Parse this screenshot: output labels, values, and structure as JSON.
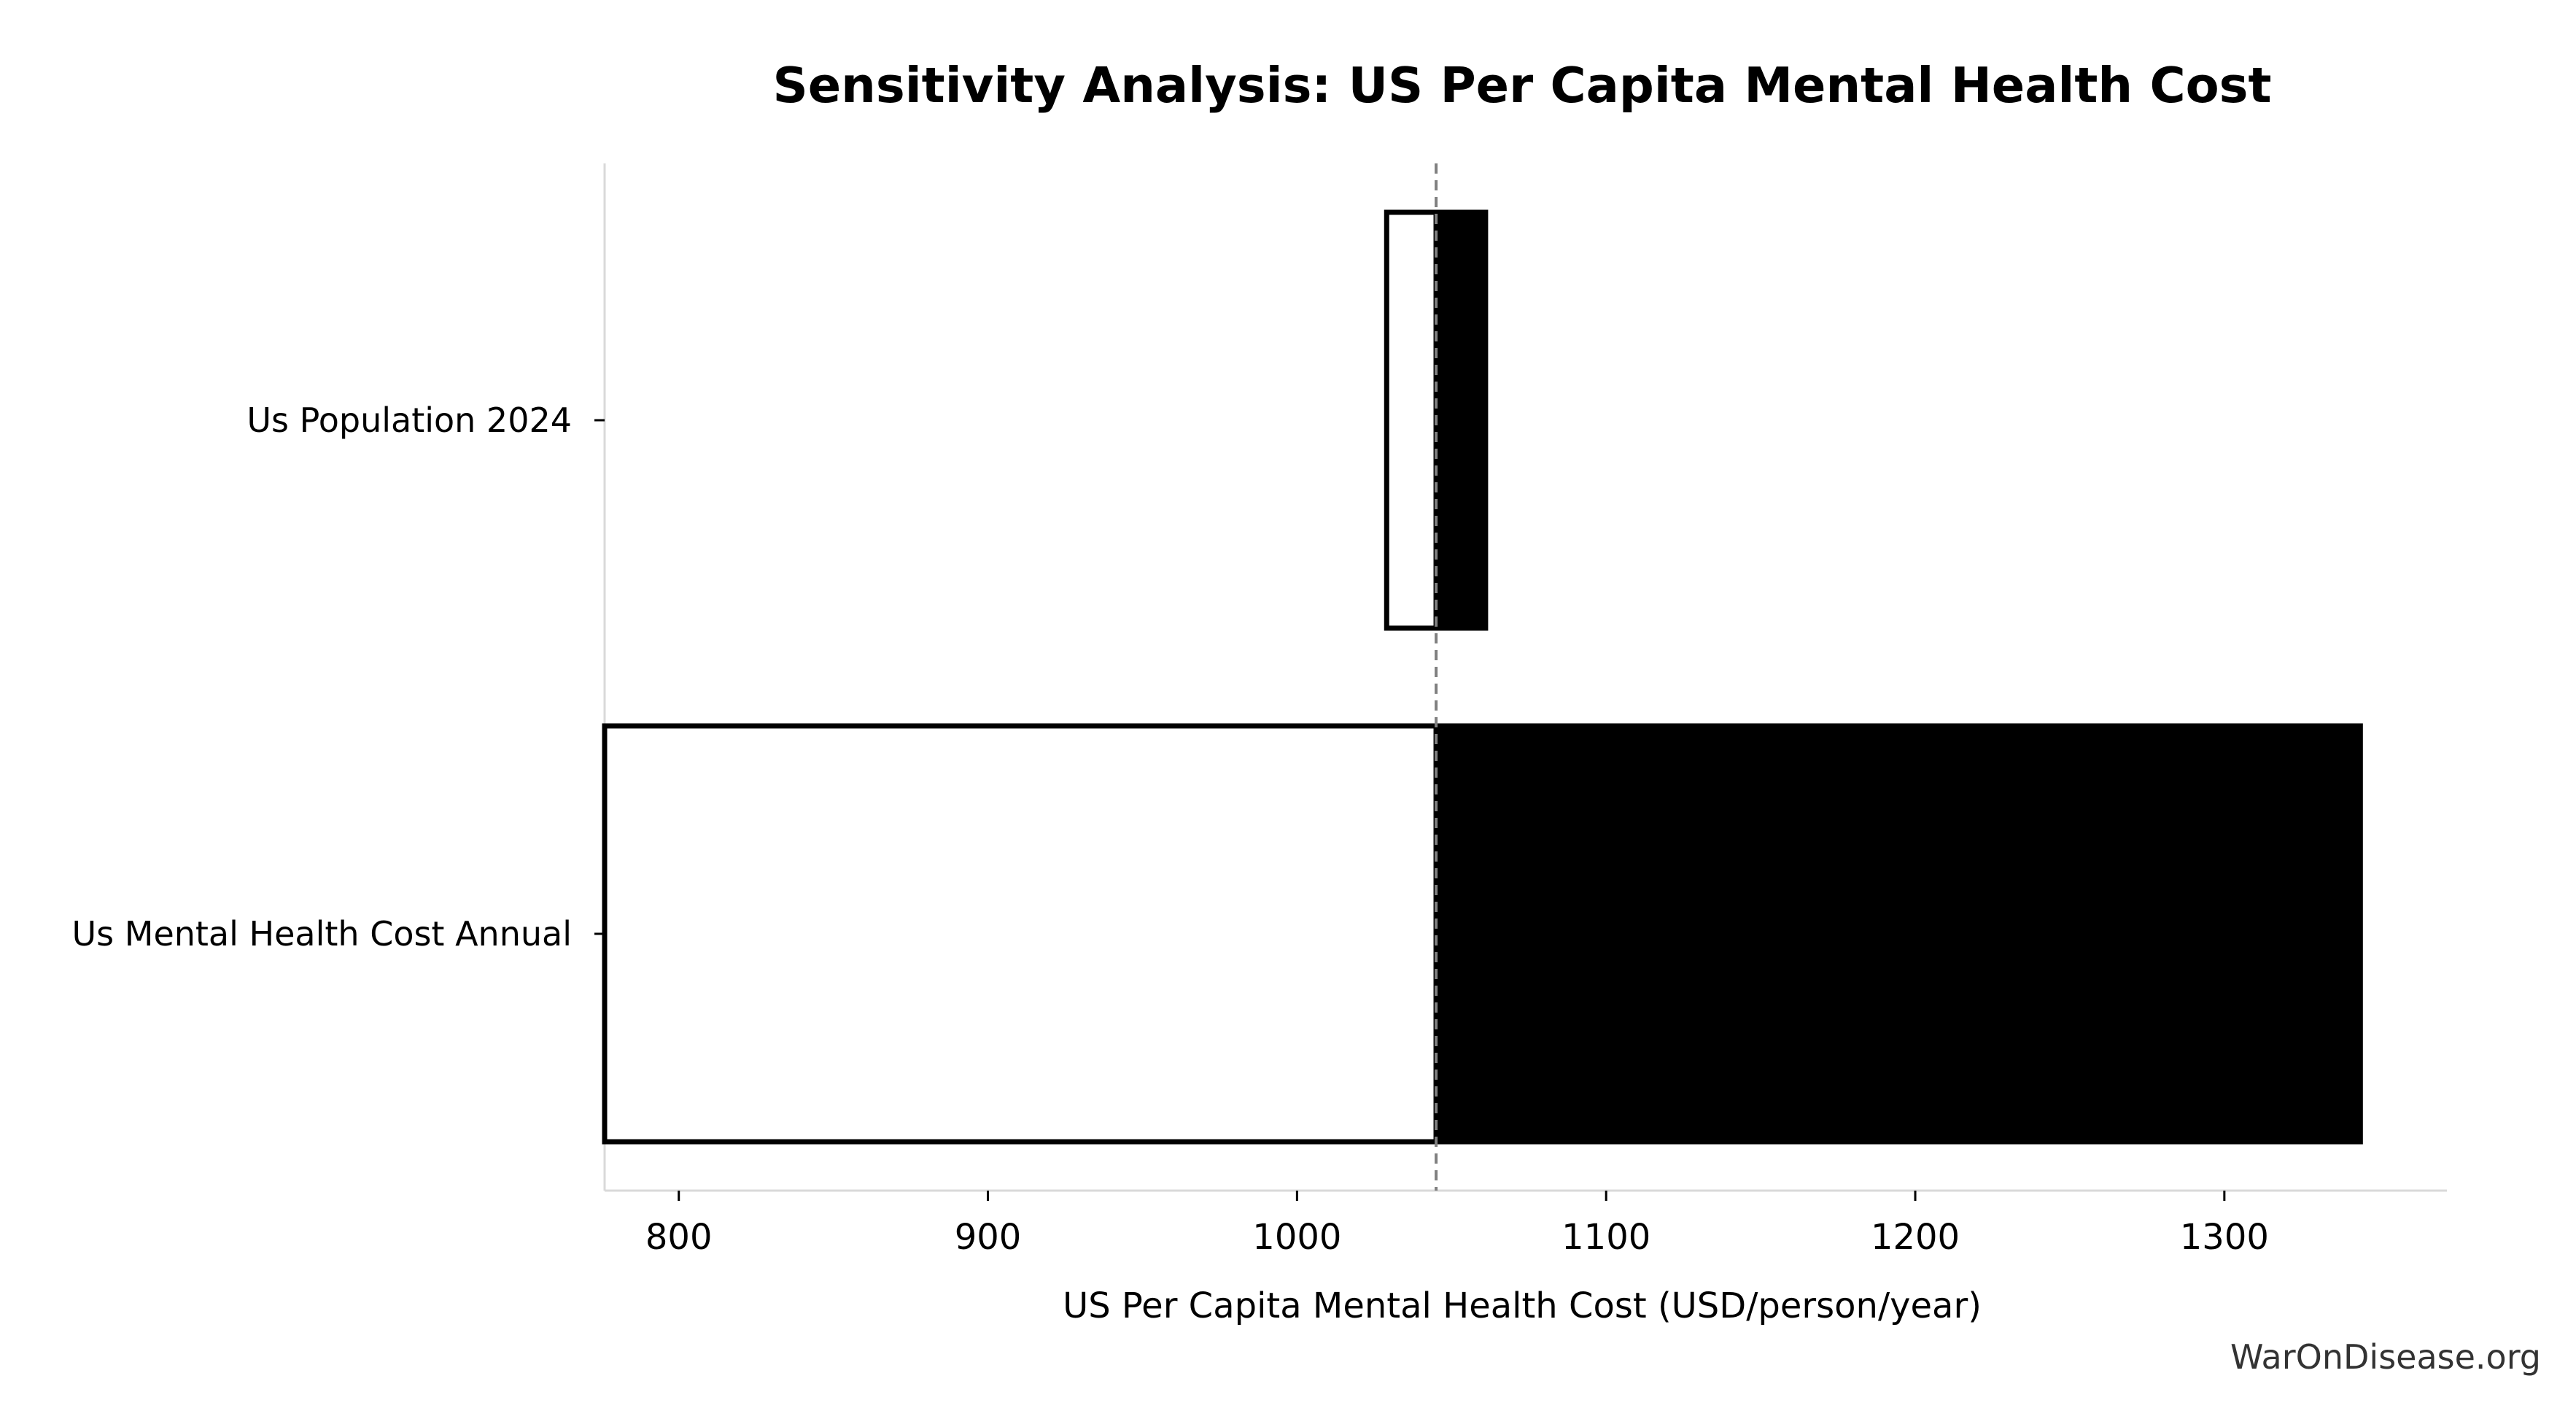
{
  "chart_data": {
    "type": "bar",
    "subtype": "tornado",
    "title": "Sensitivity Analysis: US Per Capita Mental Health Cost",
    "xlabel": "US Per Capita Mental Health Cost (USD/person/year)",
    "ylabel": "",
    "xlim": [
      776,
      1372
    ],
    "xticks": [
      800,
      900,
      1000,
      1100,
      1200,
      1300
    ],
    "xtick_labels": [
      "800",
      "900",
      "1000",
      "1100",
      "1200",
      "1300"
    ],
    "baseline": 1045,
    "categories": [
      "Us Population 2024",
      "Us Mental Health Cost Annual"
    ],
    "bars": [
      {
        "label": "Us Population 2024",
        "low": 1029,
        "high": 1061
      },
      {
        "label": "Us Mental Health Cost Annual",
        "low": 776,
        "high": 1344
      }
    ],
    "grid": false,
    "legend": "none",
    "colors": {
      "low_fill": "#ffffff",
      "high_fill": "#000000",
      "outline": "#000000",
      "baseline": "#808080",
      "spine": "#d9d9d9"
    }
  },
  "watermark": "WarOnDisease.org"
}
